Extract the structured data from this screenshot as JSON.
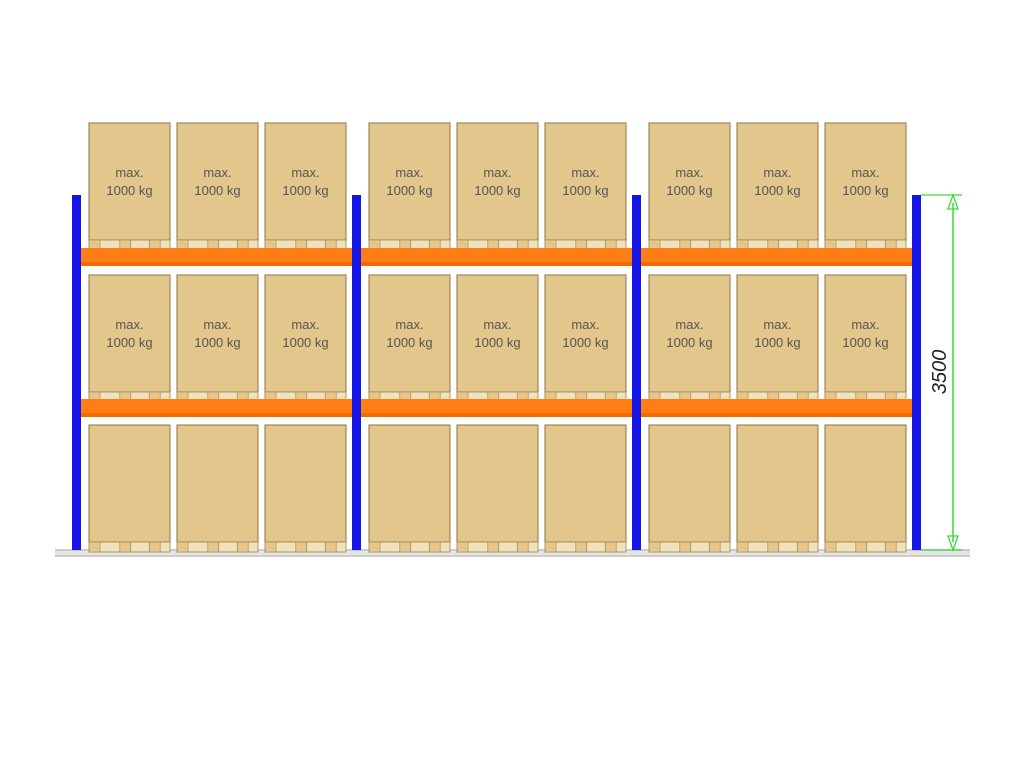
{
  "diagram": {
    "bays": 3,
    "pallets_per_bay": 3,
    "levels": 3,
    "levels_with_label": [
      0,
      1
    ],
    "box_label_line1": "max.",
    "box_label_line2": "1000 kg",
    "height_dimension": "3500",
    "colors": {
      "upright": "#1414e6",
      "beam": "#ff7d14",
      "box_fill": "#e2c68c",
      "box_stroke": "#8c7440",
      "pallet_fill": "#f0e2bb",
      "pallet_stroke": "#9c8450",
      "dimension_line": "#33dd33",
      "floor": "#bdbdbd"
    }
  }
}
